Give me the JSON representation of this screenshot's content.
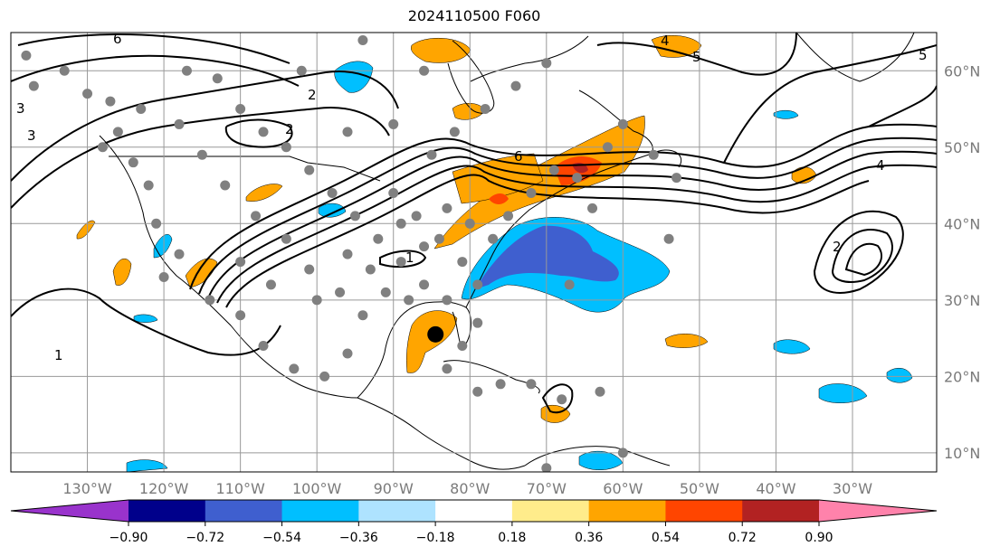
{
  "title": "2024110500 F060",
  "map": {
    "projection": "plate-carree",
    "extent_lon": [
      -140,
      -19
    ],
    "extent_lat": [
      7.5,
      65
    ],
    "gridlines": true,
    "lon_ticks": [
      {
        "value": -130,
        "label": "130°W"
      },
      {
        "value": -120,
        "label": "120°W"
      },
      {
        "value": -110,
        "label": "110°W"
      },
      {
        "value": -100,
        "label": "100°W"
      },
      {
        "value": -90,
        "label": "90°W"
      },
      {
        "value": -80,
        "label": "80°W"
      },
      {
        "value": -70,
        "label": "70°W"
      },
      {
        "value": -60,
        "label": "60°W"
      },
      {
        "value": -50,
        "label": "50°W"
      },
      {
        "value": -40,
        "label": "40°W"
      },
      {
        "value": -30,
        "label": "30°W"
      }
    ],
    "lat_ticks": [
      {
        "value": 60,
        "label": "60°N"
      },
      {
        "value": 50,
        "label": "50°N"
      },
      {
        "value": 40,
        "label": "40°N"
      },
      {
        "value": 30,
        "label": "30°N"
      },
      {
        "value": 20,
        "label": "20°N"
      },
      {
        "value": 10,
        "label": "10°N"
      }
    ],
    "contour_labels": [
      "6",
      "5",
      "4",
      "3",
      "2",
      "1",
      "6",
      "2",
      "1",
      "2",
      "3",
      "4",
      "5"
    ],
    "center_marker": {
      "lon": -84.5,
      "lat": 25.5
    }
  },
  "colorbar": {
    "colors": [
      "#9933cc",
      "#00008b",
      "#3f5fcf",
      "#00bfff",
      "#aee3ff",
      "#ffffff",
      "#ffec8b",
      "#ffa500",
      "#ff4500",
      "#b22222",
      "#ff82ab"
    ],
    "tick_labels": [
      "−0.90",
      "−0.72",
      "−0.54",
      "−0.36",
      "−0.18",
      "0.18",
      "0.36",
      "0.54",
      "0.72",
      "0.90"
    ]
  },
  "colors": {
    "station_dot": "#808080",
    "gridline": "#999999",
    "axis_label": "#7a7a7a"
  }
}
